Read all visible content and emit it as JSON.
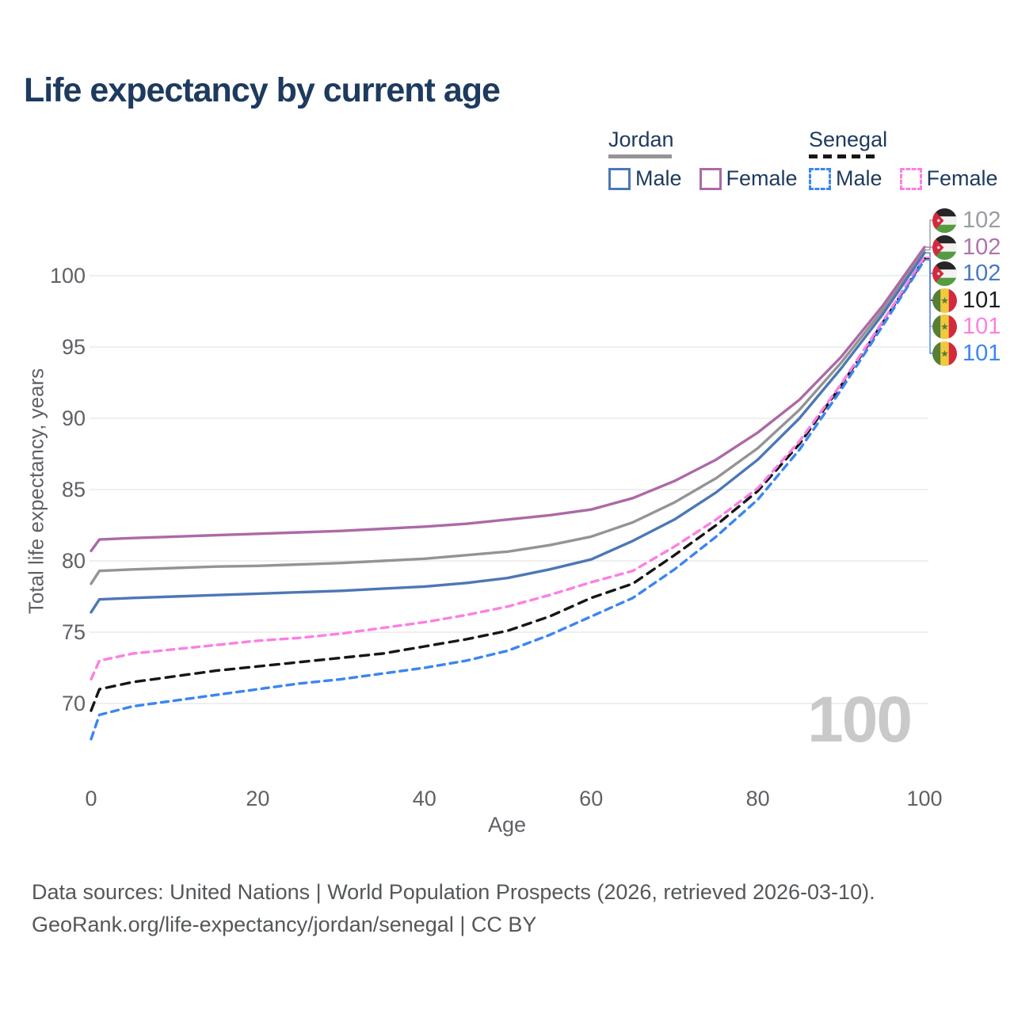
{
  "title": "Life expectancy by current age",
  "watermark": "100",
  "legend": {
    "jordan": {
      "label": "Jordan",
      "male": "Male",
      "female": "Female"
    },
    "senegal": {
      "label": "Senegal",
      "male": "Male",
      "female": "Female"
    }
  },
  "colors": {
    "title": "#1e3a5e",
    "jordan_total": "#949494",
    "jordan_female": "#ad69a6",
    "jordan_male": "#4d77b5",
    "senegal_total": "#161616",
    "senegal_female": "#fb80e3",
    "senegal_male": "#3d85f0",
    "grid": "#eaeaea",
    "axis_text": "#5f6165",
    "watermark": "#c9c9c9"
  },
  "chart_data": {
    "type": "line",
    "title": "Life expectancy by current age",
    "xlabel": "Age",
    "ylabel": "Total life expectancy, years",
    "x_ticks": [
      0,
      20,
      40,
      60,
      80,
      100
    ],
    "y_ticks": [
      70,
      75,
      80,
      85,
      90,
      95,
      100
    ],
    "xlim": [
      0,
      100
    ],
    "ylim": [
      66,
      102.5
    ],
    "grid": "horizontal-only",
    "x": [
      0,
      1,
      5,
      10,
      15,
      20,
      25,
      30,
      35,
      40,
      45,
      50,
      55,
      60,
      65,
      70,
      75,
      80,
      85,
      90,
      95,
      100
    ],
    "series": [
      {
        "id": "jordan-total",
        "name": "Jordan Total",
        "country": "Jordan",
        "sex": "Total",
        "color": "#949494",
        "dash": null,
        "values": [
          78.4,
          79.3,
          79.4,
          79.5,
          79.6,
          79.65,
          79.75,
          79.85,
          80.0,
          80.15,
          80.4,
          80.65,
          81.1,
          81.7,
          82.7,
          84.1,
          85.8,
          87.9,
          90.6,
          93.9,
          97.6,
          101.8
        ]
      },
      {
        "id": "jordan-female",
        "name": "Jordan Female",
        "country": "Jordan",
        "sex": "Female",
        "color": "#ad69a6",
        "dash": null,
        "values": [
          80.7,
          81.5,
          81.6,
          81.7,
          81.8,
          81.9,
          82.0,
          82.1,
          82.25,
          82.4,
          82.6,
          82.9,
          83.2,
          83.6,
          84.4,
          85.6,
          87.1,
          89.0,
          91.3,
          94.3,
          97.9,
          102.0
        ]
      },
      {
        "id": "jordan-male",
        "name": "Jordan Male",
        "country": "Jordan",
        "sex": "Male",
        "color": "#4d77b5",
        "dash": null,
        "values": [
          76.4,
          77.3,
          77.4,
          77.5,
          77.6,
          77.7,
          77.8,
          77.9,
          78.05,
          78.2,
          78.45,
          78.8,
          79.4,
          80.1,
          81.4,
          82.9,
          84.8,
          87.1,
          90.0,
          93.5,
          97.3,
          101.6
        ]
      },
      {
        "id": "senegal-total",
        "name": "Senegal Total",
        "country": "Senegal",
        "sex": "Total",
        "color": "#161616",
        "dash": "11 8",
        "values": [
          69.5,
          71.0,
          71.5,
          71.9,
          72.3,
          72.6,
          72.9,
          73.2,
          73.5,
          74.0,
          74.5,
          75.1,
          76.1,
          77.4,
          78.4,
          80.4,
          82.5,
          84.9,
          88.2,
          92.3,
          96.7,
          101.2
        ]
      },
      {
        "id": "senegal-female",
        "name": "Senegal Female",
        "country": "Senegal",
        "sex": "Female",
        "color": "#fb80e3",
        "dash": "9 7",
        "values": [
          71.7,
          73.0,
          73.5,
          73.8,
          74.1,
          74.4,
          74.6,
          74.9,
          75.3,
          75.7,
          76.2,
          76.8,
          77.6,
          78.5,
          79.3,
          81.0,
          82.9,
          85.1,
          88.4,
          92.4,
          96.8,
          101.3
        ]
      },
      {
        "id": "senegal-male",
        "name": "Senegal Male",
        "country": "Senegal",
        "sex": "Male",
        "color": "#3d85f0",
        "dash": "9 7",
        "values": [
          67.5,
          69.2,
          69.8,
          70.2,
          70.6,
          71.0,
          71.4,
          71.7,
          72.1,
          72.5,
          73.0,
          73.7,
          74.8,
          76.1,
          77.4,
          79.4,
          81.7,
          84.3,
          87.8,
          92.0,
          96.5,
          101.1
        ]
      }
    ],
    "endpoint_labels": [
      {
        "flag": "jordan",
        "value": "102",
        "color": "#9a9ca0",
        "series": 0
      },
      {
        "flag": "jordan",
        "value": "102",
        "color": "#b073ab",
        "series": 1
      },
      {
        "flag": "jordan",
        "value": "102",
        "color": "#4a78c4",
        "series": 2
      },
      {
        "flag": "senegal",
        "value": "101",
        "color": "#1d1d1d",
        "series": 3
      },
      {
        "flag": "senegal",
        "value": "101",
        "color": "#fb80e3",
        "series": 4
      },
      {
        "flag": "senegal",
        "value": "101",
        "color": "#3d85f0",
        "series": 5
      }
    ]
  },
  "footer": {
    "line1": "Data sources: United Nations | World Population Prospects (2026, retrieved 2026-03-10).",
    "line2": "GeoRank.org/life-expectancy/jordan/senegal | CC BY"
  }
}
